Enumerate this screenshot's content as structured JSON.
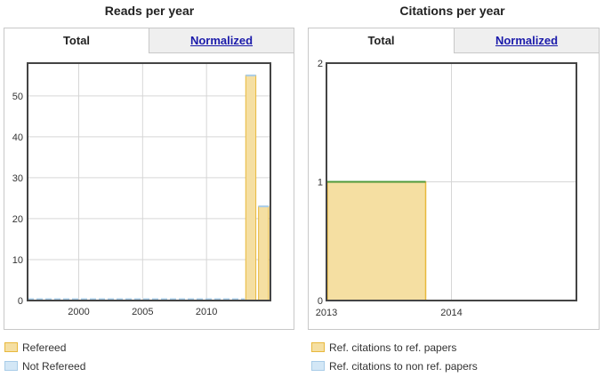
{
  "panels": [
    {
      "title": "Reads per year",
      "tabs": [
        {
          "label": "Total",
          "active": true
        },
        {
          "label": "Normalized",
          "active": false
        }
      ],
      "legend": [
        {
          "label": "Refereed",
          "color": "#e8b83c",
          "fill": "#f5dfa2"
        },
        {
          "label": "Not Refereed",
          "color": "#a8cce8",
          "fill": "#d3e7f6"
        }
      ]
    },
    {
      "title": "Citations per year",
      "tabs": [
        {
          "label": "Total",
          "active": true
        },
        {
          "label": "Normalized",
          "active": false
        }
      ],
      "legend": [
        {
          "label": "Ref. citations to ref. papers",
          "color": "#e8b83c",
          "fill": "#f5dfa2"
        },
        {
          "label": "Ref. citations to non ref. papers",
          "color": "#a8cce8",
          "fill": "#d3e7f6"
        }
      ]
    }
  ],
  "chart_data": [
    {
      "type": "bar",
      "title": "Reads per year",
      "xlim": [
        1996,
        2015
      ],
      "ylim": [
        0,
        58
      ],
      "x_ticks": [
        2000,
        2005,
        2010
      ],
      "y_ticks": [
        0,
        10,
        20,
        30,
        40,
        50
      ],
      "grid": true,
      "legend_placement": "bottom",
      "series": [
        {
          "name": "Refereed",
          "color": "#e8b83c",
          "fill": "#f5dfa2",
          "bars": [
            {
              "x": 2013,
              "value": 55
            },
            {
              "x": 2014,
              "value": 23
            }
          ]
        },
        {
          "name": "Not Refereed",
          "color": "#a8cce8",
          "fill": "#d3e7f6",
          "baseline_from": 1996,
          "baseline_to": 2013,
          "bars": [
            {
              "x": 2013,
              "value": 0
            },
            {
              "x": 2014,
              "value": 0
            }
          ]
        }
      ]
    },
    {
      "type": "bar",
      "title": "Citations per year",
      "xlim": [
        2013,
        2015
      ],
      "ylim": [
        0,
        2
      ],
      "x_ticks": [
        2013,
        2014
      ],
      "y_ticks": [
        0,
        1,
        2
      ],
      "grid": true,
      "legend_placement": "bottom",
      "series": [
        {
          "name": "Ref. citations to ref. papers",
          "color": "#e8b83c",
          "fill": "#f5dfa2",
          "bars": [
            {
              "x": 2013,
              "value": 1
            },
            {
              "x": 2014,
              "value": 0
            }
          ]
        }
      ],
      "top_line_color": "#4f9a3a"
    }
  ]
}
